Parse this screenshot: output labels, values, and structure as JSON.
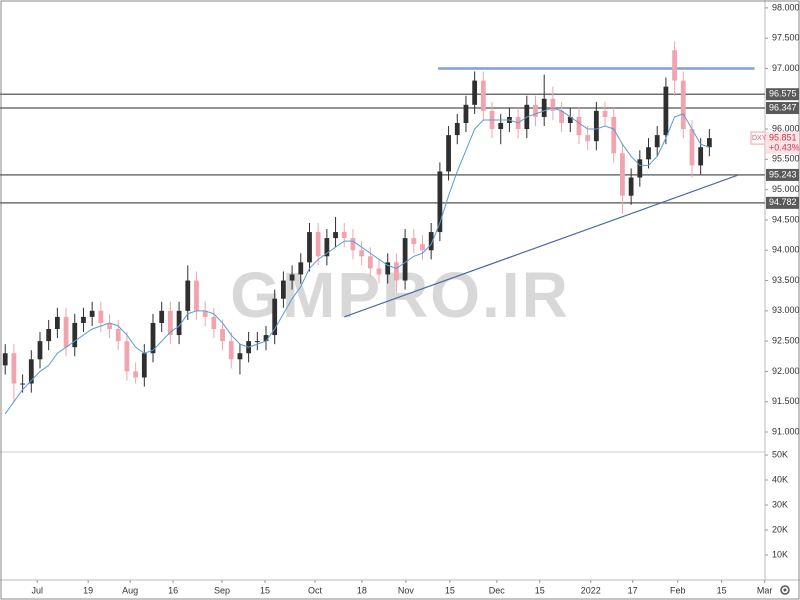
{
  "chart_data": {
    "type": "candlestick",
    "symbol": "DXY",
    "watermark": "GMPRO.IR",
    "last_price": 95.851,
    "change": "+0.43%",
    "up_color": "#2f2f2f",
    "down_color": "#f2a3ad",
    "ma_color": "#5b9bd5",
    "xlim": [
      -0.6,
      87.4
    ],
    "ylim": [
      90.67,
      98.13
    ],
    "xticks": [
      {
        "value": 3.68,
        "label": "Jul"
      },
      {
        "value": 9.54,
        "label": "19"
      },
      {
        "value": 14.37,
        "label": "Aug"
      },
      {
        "value": 19.31,
        "label": "16"
      },
      {
        "value": 24.94,
        "label": "Sep"
      },
      {
        "value": 29.89,
        "label": "15"
      },
      {
        "value": 35.63,
        "label": "Oct"
      },
      {
        "value": 41.03,
        "label": "18"
      },
      {
        "value": 46.09,
        "label": "Nov"
      },
      {
        "value": 51.15,
        "label": "15"
      },
      {
        "value": 56.55,
        "label": "Dec"
      },
      {
        "value": 61.49,
        "label": "15"
      },
      {
        "value": 67.36,
        "label": "2022"
      },
      {
        "value": 72.18,
        "label": "17"
      },
      {
        "value": 77.36,
        "label": "Feb"
      },
      {
        "value": 82.41,
        "label": "15"
      },
      {
        "value": 87.36,
        "label": "Mar"
      }
    ],
    "yticks": [
      {
        "value": 91,
        "label": "91.000"
      },
      {
        "value": 91.5,
        "label": "91.500"
      },
      {
        "value": 92,
        "label": "92.000"
      },
      {
        "value": 92.5,
        "label": "92.500"
      },
      {
        "value": 93,
        "label": "93.000"
      },
      {
        "value": 93.5,
        "label": "93.500"
      },
      {
        "value": 94,
        "label": "94.000"
      },
      {
        "value": 94.5,
        "label": "94.500"
      },
      {
        "value": 95,
        "label": "95.000"
      },
      {
        "value": 95.5,
        "label": "95.500"
      },
      {
        "value": 96,
        "label": "96.000"
      },
      {
        "value": 97,
        "label": "97.000"
      },
      {
        "value": 97.5,
        "label": "97.500"
      },
      {
        "value": 98,
        "label": "98.000"
      }
    ],
    "y2lim": [
      0,
      51200
    ],
    "y2ticks": [
      {
        "value": 10000,
        "label": "10K"
      },
      {
        "value": 20000,
        "label": "20K"
      },
      {
        "value": 30000,
        "label": "30K"
      },
      {
        "value": 40000,
        "label": "40K"
      },
      {
        "value": 50000,
        "label": "50K"
      }
    ],
    "levels": [
      96.575,
      96.347,
      95.243,
      94.782
    ],
    "resistance": {
      "x": [
        49.8,
        86.2
      ],
      "value": 97
    },
    "trendline": {
      "x": [
        39,
        84.3
      ],
      "y": [
        92.9,
        95.24
      ]
    },
    "open": [
      92.1,
      92.3,
      91.8,
      91.8,
      92.2,
      92.5,
      92.7,
      92.9,
      92.4,
      92.8,
      92.9,
      93.0,
      92.8,
      92.7,
      92.5,
      92.0,
      91.9,
      92.3,
      92.8,
      93.0,
      92.6,
      93.0,
      93.5,
      93.0,
      92.9,
      92.7,
      92.5,
      92.2,
      92.3,
      92.5,
      92.5,
      92.6,
      93.2,
      93.5,
      93.6,
      93.8,
      94.3,
      93.9,
      94.2,
      94.3,
      94.2,
      94.0,
      93.9,
      93.7,
      93.6,
      93.8,
      93.5,
      94.2,
      94.1,
      94.0,
      94.3,
      95.3,
      95.9,
      96.1,
      96.4,
      96.8,
      96.3,
      96.0,
      96.1,
      96.2,
      96.0,
      96.4,
      96.2,
      96.5,
      96.3,
      96.1,
      96.2,
      95.9,
      95.8,
      96.3,
      96.2,
      95.6,
      94.9,
      95.2,
      95.5,
      95.7,
      95.9,
      97.3,
      96.8,
      96.0,
      95.4,
      95.7
    ],
    "high": [
      92.45,
      92.45,
      91.95,
      92.35,
      92.65,
      92.85,
      93.05,
      93.05,
      92.95,
      93.05,
      93.15,
      93.15,
      92.95,
      92.85,
      92.65,
      92.15,
      92.45,
      92.95,
      93.15,
      93.15,
      93.15,
      93.75,
      93.65,
      93.15,
      93.05,
      92.85,
      92.65,
      92.45,
      92.65,
      92.65,
      92.75,
      93.35,
      93.65,
      93.75,
      93.95,
      94.45,
      94.45,
      94.35,
      94.55,
      94.45,
      94.35,
      94.15,
      94.05,
      93.85,
      93.95,
      93.95,
      94.35,
      94.35,
      94.25,
      94.45,
      95.45,
      96.05,
      96.25,
      96.55,
      96.95,
      96.95,
      96.45,
      96.25,
      96.35,
      96.35,
      96.55,
      96.55,
      96.9,
      96.7,
      96.45,
      96.35,
      96.35,
      96.05,
      96.45,
      96.45,
      96.35,
      95.75,
      95.35,
      95.65,
      95.85,
      96.05,
      96.85,
      97.45,
      96.95,
      96.15,
      95.85,
      96.0
    ],
    "low": [
      91.95,
      91.5,
      91.65,
      91.65,
      92.05,
      92.35,
      92.55,
      92.25,
      92.25,
      92.65,
      92.75,
      92.65,
      92.55,
      92.35,
      91.85,
      91.8,
      91.75,
      92.15,
      92.65,
      92.45,
      92.45,
      92.85,
      92.85,
      92.75,
      92.55,
      92.35,
      92.05,
      91.95,
      92.15,
      92.35,
      92.35,
      92.45,
      93.05,
      93.35,
      93.45,
      93.65,
      93.75,
      93.75,
      94.05,
      94.05,
      93.85,
      93.75,
      93.55,
      93.45,
      93.45,
      93.3,
      93.35,
      93.95,
      93.85,
      93.85,
      94.15,
      95.15,
      95.75,
      95.95,
      96.25,
      96.15,
      95.85,
      95.75,
      95.95,
      95.85,
      95.85,
      96.05,
      96.05,
      96.15,
      95.95,
      95.95,
      95.75,
      95.65,
      95.65,
      96.05,
      95.45,
      94.6,
      94.75,
      95.05,
      95.35,
      95.55,
      95.75,
      96.55,
      95.85,
      95.2,
      95.25,
      95.55
    ],
    "close": [
      92.3,
      91.8,
      91.8,
      92.2,
      92.5,
      92.7,
      92.9,
      92.4,
      92.8,
      92.9,
      93.0,
      92.8,
      92.7,
      92.5,
      92.0,
      91.9,
      92.3,
      92.8,
      93.0,
      92.6,
      93.0,
      93.5,
      93.0,
      92.9,
      92.7,
      92.5,
      92.2,
      92.3,
      92.5,
      92.5,
      92.6,
      93.2,
      93.5,
      93.6,
      93.8,
      94.3,
      93.9,
      94.2,
      94.3,
      94.2,
      94.0,
      93.9,
      93.7,
      93.6,
      93.8,
      93.5,
      94.2,
      94.1,
      94.0,
      94.3,
      95.3,
      95.9,
      96.1,
      96.4,
      96.8,
      96.3,
      96.0,
      96.1,
      96.2,
      96.0,
      96.4,
      96.2,
      96.5,
      96.3,
      96.1,
      96.2,
      95.9,
      95.8,
      96.3,
      96.2,
      95.6,
      94.9,
      95.2,
      95.5,
      95.7,
      95.9,
      96.7,
      96.8,
      96.0,
      95.4,
      95.7,
      95.85
    ],
    "ma": [
      91.3,
      91.5,
      91.7,
      91.85,
      92.0,
      92.1,
      92.3,
      92.4,
      92.5,
      92.6,
      92.7,
      92.75,
      92.8,
      92.75,
      92.6,
      92.4,
      92.3,
      92.35,
      92.5,
      92.65,
      92.75,
      92.95,
      93.0,
      93.0,
      92.95,
      92.8,
      92.6,
      92.45,
      92.4,
      92.45,
      92.5,
      92.7,
      92.95,
      93.2,
      93.4,
      93.7,
      93.85,
      93.95,
      94.05,
      94.15,
      94.15,
      94.05,
      93.95,
      93.85,
      93.75,
      93.7,
      93.8,
      93.9,
      93.95,
      94.1,
      94.45,
      94.9,
      95.3,
      95.65,
      96.0,
      96.15,
      96.15,
      96.15,
      96.15,
      96.1,
      96.2,
      96.25,
      96.3,
      96.35,
      96.3,
      96.2,
      96.1,
      96.0,
      96.0,
      96.05,
      96.0,
      95.75,
      95.55,
      95.4,
      95.4,
      95.55,
      95.85,
      96.2,
      96.25,
      96.0,
      95.75,
      95.7
    ]
  }
}
